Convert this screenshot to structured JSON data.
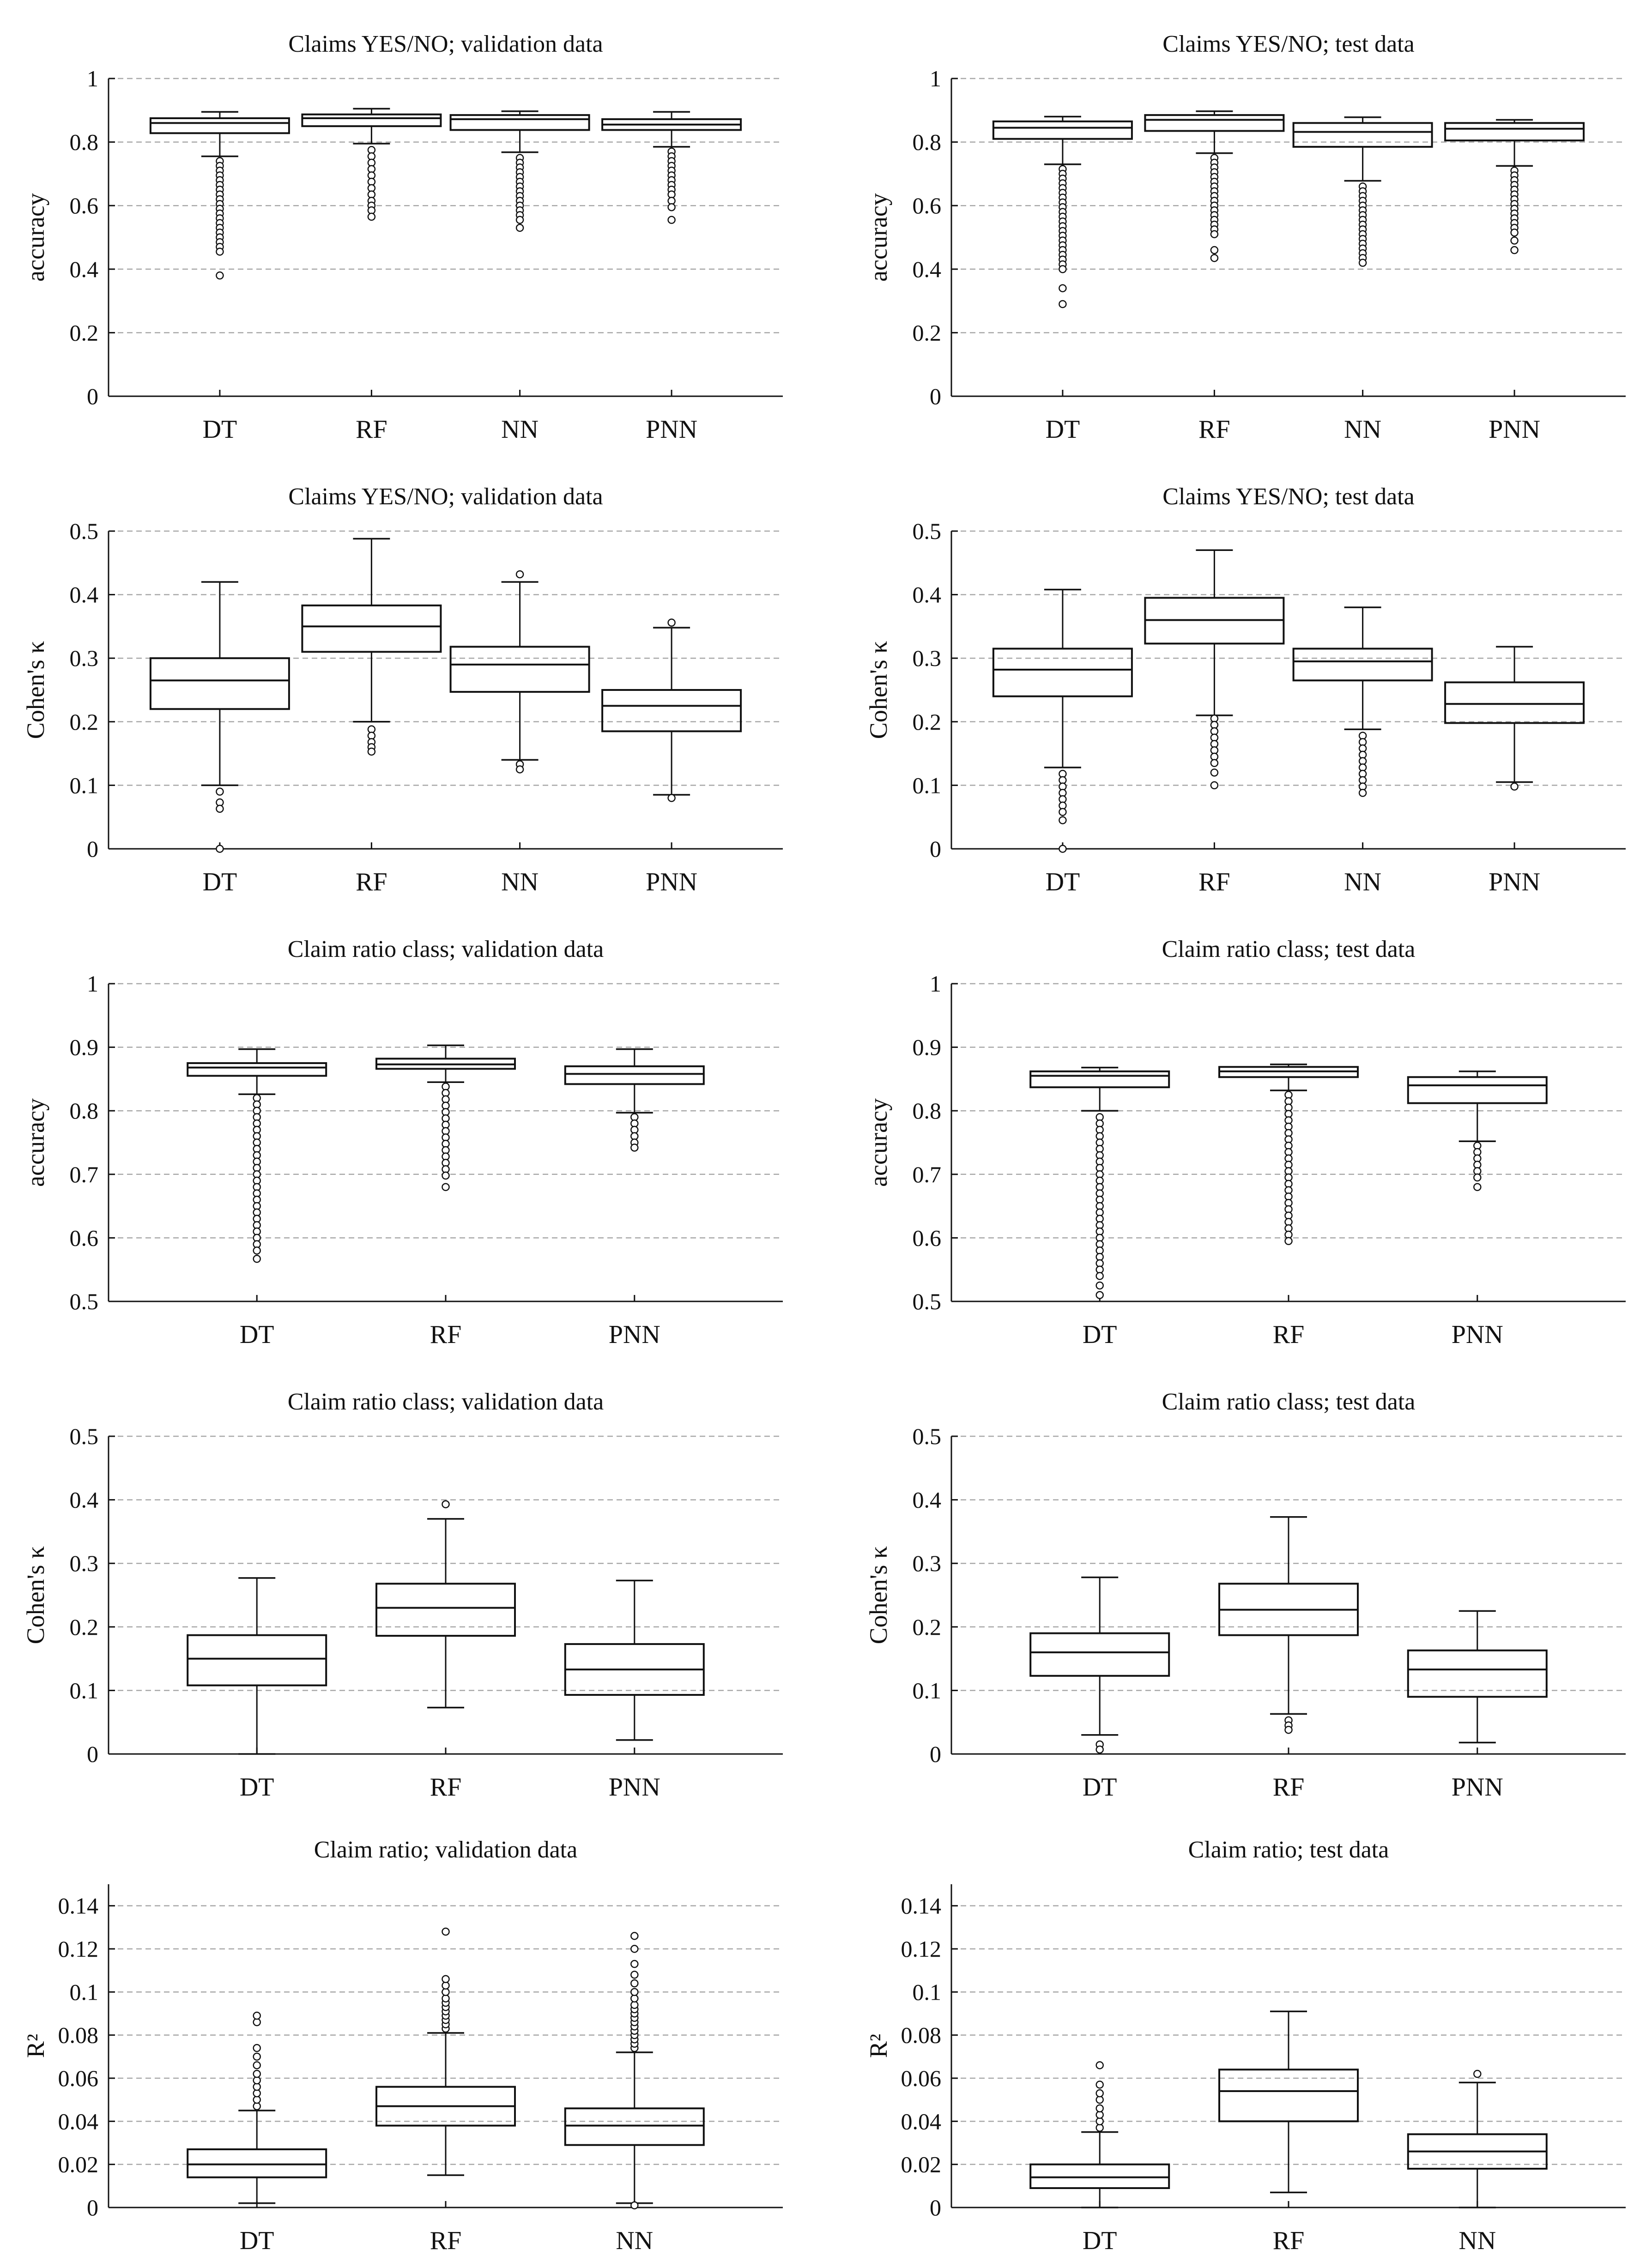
{
  "chart_data": [
    {
      "type": "box",
      "title": "Claims YES/NO; validation data",
      "ylabel": "accuracy",
      "ylim": [
        0,
        1
      ],
      "yticks": [
        0,
        0.2,
        0.4,
        0.6,
        0.8,
        1
      ],
      "ytick_labels": [
        "0",
        "0.2",
        "0.4",
        "0.6",
        "0.8",
        "1"
      ],
      "grid": true,
      "categories": [
        "DT",
        "RF",
        "NN",
        "PNN"
      ],
      "boxes": [
        {
          "label": "DT",
          "min": 0.755,
          "q1": 0.828,
          "median": 0.86,
          "q3": 0.875,
          "max": 0.895,
          "outliers": [
            0.74,
            0.725,
            0.71,
            0.695,
            0.68,
            0.665,
            0.65,
            0.635,
            0.62,
            0.605,
            0.59,
            0.575,
            0.56,
            0.545,
            0.53,
            0.515,
            0.5,
            0.485,
            0.47,
            0.455,
            0.38
          ]
        },
        {
          "label": "RF",
          "min": 0.795,
          "q1": 0.85,
          "median": 0.875,
          "q3": 0.887,
          "max": 0.905,
          "outliers": [
            0.775,
            0.755,
            0.735,
            0.715,
            0.695,
            0.675,
            0.655,
            0.635,
            0.615,
            0.6,
            0.585,
            0.565
          ]
        },
        {
          "label": "NN",
          "min": 0.768,
          "q1": 0.838,
          "median": 0.872,
          "q3": 0.885,
          "max": 0.897,
          "outliers": [
            0.75,
            0.735,
            0.72,
            0.705,
            0.69,
            0.675,
            0.66,
            0.645,
            0.63,
            0.615,
            0.6,
            0.585,
            0.57,
            0.555,
            0.53
          ]
        },
        {
          "label": "PNN",
          "min": 0.785,
          "q1": 0.838,
          "median": 0.855,
          "q3": 0.872,
          "max": 0.895,
          "outliers": [
            0.77,
            0.755,
            0.74,
            0.725,
            0.71,
            0.695,
            0.68,
            0.665,
            0.65,
            0.635,
            0.615,
            0.595,
            0.555
          ]
        }
      ]
    },
    {
      "type": "box",
      "title": "Claims YES/NO; test data",
      "ylabel": "accuracy",
      "ylim": [
        0,
        1
      ],
      "yticks": [
        0,
        0.2,
        0.4,
        0.6,
        0.8,
        1
      ],
      "ytick_labels": [
        "0",
        "0.2",
        "0.4",
        "0.6",
        "0.8",
        "1"
      ],
      "grid": true,
      "categories": [
        "DT",
        "RF",
        "NN",
        "PNN"
      ],
      "boxes": [
        {
          "label": "DT",
          "min": 0.73,
          "q1": 0.81,
          "median": 0.845,
          "q3": 0.865,
          "max": 0.88,
          "outliers": [
            0.715,
            0.7,
            0.685,
            0.67,
            0.655,
            0.64,
            0.625,
            0.61,
            0.595,
            0.58,
            0.565,
            0.55,
            0.535,
            0.52,
            0.505,
            0.49,
            0.475,
            0.46,
            0.445,
            0.43,
            0.415,
            0.4,
            0.34,
            0.29
          ]
        },
        {
          "label": "RF",
          "min": 0.765,
          "q1": 0.835,
          "median": 0.87,
          "q3": 0.885,
          "max": 0.897,
          "outliers": [
            0.75,
            0.735,
            0.72,
            0.705,
            0.69,
            0.675,
            0.66,
            0.645,
            0.63,
            0.615,
            0.6,
            0.585,
            0.57,
            0.555,
            0.54,
            0.525,
            0.51,
            0.46,
            0.435
          ]
        },
        {
          "label": "NN",
          "min": 0.678,
          "q1": 0.785,
          "median": 0.832,
          "q3": 0.86,
          "max": 0.878,
          "outliers": [
            0.66,
            0.645,
            0.63,
            0.615,
            0.6,
            0.585,
            0.57,
            0.555,
            0.54,
            0.525,
            0.51,
            0.495,
            0.48,
            0.465,
            0.45,
            0.435,
            0.42
          ]
        },
        {
          "label": "PNN",
          "min": 0.725,
          "q1": 0.805,
          "median": 0.842,
          "q3": 0.86,
          "max": 0.87,
          "outliers": [
            0.71,
            0.695,
            0.68,
            0.665,
            0.65,
            0.635,
            0.62,
            0.605,
            0.59,
            0.575,
            0.56,
            0.545,
            0.53,
            0.515,
            0.49,
            0.46
          ]
        }
      ]
    },
    {
      "type": "box",
      "title": "Claims YES/NO; validation data",
      "ylabel": "Cohen's κ",
      "ylim": [
        0,
        0.5
      ],
      "yticks": [
        0,
        0.1,
        0.2,
        0.3,
        0.4,
        0.5
      ],
      "ytick_labels": [
        "0",
        "0.1",
        "0.2",
        "0.3",
        "0.4",
        "0.5"
      ],
      "grid": true,
      "categories": [
        "DT",
        "RF",
        "NN",
        "PNN"
      ],
      "boxes": [
        {
          "label": "DT",
          "min": 0.1,
          "q1": 0.22,
          "median": 0.265,
          "q3": 0.3,
          "max": 0.42,
          "outliers": [
            0.09,
            0.073,
            0.063,
            0.0
          ]
        },
        {
          "label": "RF",
          "min": 0.2,
          "q1": 0.31,
          "median": 0.35,
          "q3": 0.383,
          "max": 0.488,
          "outliers": [
            0.188,
            0.178,
            0.168,
            0.16,
            0.153
          ]
        },
        {
          "label": "NN",
          "min": 0.14,
          "q1": 0.247,
          "median": 0.29,
          "q3": 0.318,
          "max": 0.42,
          "outliers": [
            0.432,
            0.133,
            0.125
          ]
        },
        {
          "label": "PNN",
          "min": 0.085,
          "q1": 0.185,
          "median": 0.225,
          "q3": 0.25,
          "max": 0.348,
          "outliers": [
            0.356,
            0.08
          ]
        }
      ]
    },
    {
      "type": "box",
      "title": "Claims YES/NO; test data",
      "ylabel": "Cohen's κ",
      "ylim": [
        0,
        0.5
      ],
      "yticks": [
        0,
        0.1,
        0.2,
        0.3,
        0.4,
        0.5
      ],
      "ytick_labels": [
        "0",
        "0.1",
        "0.2",
        "0.3",
        "0.4",
        "0.5"
      ],
      "grid": true,
      "categories": [
        "DT",
        "RF",
        "NN",
        "PNN"
      ],
      "boxes": [
        {
          "label": "DT",
          "min": 0.128,
          "q1": 0.24,
          "median": 0.282,
          "q3": 0.315,
          "max": 0.408,
          "outliers": [
            0.118,
            0.108,
            0.098,
            0.088,
            0.078,
            0.068,
            0.058,
            0.045,
            0.0
          ]
        },
        {
          "label": "RF",
          "min": 0.21,
          "q1": 0.323,
          "median": 0.36,
          "q3": 0.395,
          "max": 0.47,
          "outliers": [
            0.205,
            0.195,
            0.185,
            0.175,
            0.165,
            0.155,
            0.145,
            0.135,
            0.12,
            0.1
          ]
        },
        {
          "label": "NN",
          "min": 0.188,
          "q1": 0.265,
          "median": 0.295,
          "q3": 0.315,
          "max": 0.38,
          "outliers": [
            0.178,
            0.168,
            0.158,
            0.148,
            0.138,
            0.128,
            0.118,
            0.108,
            0.098,
            0.088
          ]
        },
        {
          "label": "PNN",
          "min": 0.105,
          "q1": 0.198,
          "median": 0.228,
          "q3": 0.262,
          "max": 0.318,
          "outliers": [
            0.098
          ]
        }
      ]
    },
    {
      "type": "box",
      "title": "Claim ratio class; validation data",
      "ylabel": "accuracy",
      "ylim": [
        0.5,
        1
      ],
      "yticks": [
        0.5,
        0.6,
        0.7,
        0.8,
        0.9,
        1
      ],
      "ytick_labels": [
        "0.5",
        "0.6",
        "0.7",
        "0.8",
        "0.9",
        "1"
      ],
      "grid": true,
      "categories": [
        "DT",
        "RF",
        "PNN"
      ],
      "boxes": [
        {
          "label": "DT",
          "min": 0.826,
          "q1": 0.855,
          "median": 0.868,
          "q3": 0.875,
          "max": 0.897,
          "outliers": [
            0.82,
            0.81,
            0.8,
            0.79,
            0.78,
            0.77,
            0.76,
            0.75,
            0.74,
            0.73,
            0.72,
            0.71,
            0.7,
            0.69,
            0.68,
            0.67,
            0.66,
            0.65,
            0.64,
            0.63,
            0.62,
            0.61,
            0.6,
            0.59,
            0.58,
            0.567
          ]
        },
        {
          "label": "RF",
          "min": 0.845,
          "q1": 0.866,
          "median": 0.873,
          "q3": 0.882,
          "max": 0.903,
          "outliers": [
            0.838,
            0.828,
            0.818,
            0.808,
            0.798,
            0.788,
            0.778,
            0.768,
            0.758,
            0.748,
            0.738,
            0.728,
            0.718,
            0.708,
            0.698,
            0.68
          ]
        },
        {
          "label": "PNN",
          "min": 0.797,
          "q1": 0.842,
          "median": 0.858,
          "q3": 0.87,
          "max": 0.897,
          "outliers": [
            0.79,
            0.78,
            0.77,
            0.76,
            0.75,
            0.742
          ]
        }
      ]
    },
    {
      "type": "box",
      "title": "Claim ratio class; test data",
      "ylabel": "accuracy",
      "ylim": [
        0.5,
        1
      ],
      "yticks": [
        0.5,
        0.6,
        0.7,
        0.8,
        0.9,
        1
      ],
      "ytick_labels": [
        "0.5",
        "0.6",
        "0.7",
        "0.8",
        "0.9",
        "1"
      ],
      "grid": true,
      "categories": [
        "DT",
        "RF",
        "PNN"
      ],
      "boxes": [
        {
          "label": "DT",
          "min": 0.8,
          "q1": 0.837,
          "median": 0.855,
          "q3": 0.862,
          "max": 0.868,
          "outliers": [
            0.79,
            0.78,
            0.77,
            0.76,
            0.75,
            0.74,
            0.73,
            0.72,
            0.71,
            0.7,
            0.69,
            0.68,
            0.67,
            0.66,
            0.65,
            0.64,
            0.63,
            0.62,
            0.61,
            0.6,
            0.59,
            0.58,
            0.57,
            0.56,
            0.55,
            0.54,
            0.525,
            0.51
          ]
        },
        {
          "label": "RF",
          "min": 0.832,
          "q1": 0.853,
          "median": 0.862,
          "q3": 0.869,
          "max": 0.873,
          "outliers": [
            0.825,
            0.815,
            0.805,
            0.795,
            0.785,
            0.775,
            0.765,
            0.755,
            0.745,
            0.735,
            0.725,
            0.715,
            0.705,
            0.695,
            0.685,
            0.675,
            0.665,
            0.655,
            0.645,
            0.635,
            0.625,
            0.615,
            0.605,
            0.595
          ]
        },
        {
          "label": "PNN",
          "min": 0.752,
          "q1": 0.812,
          "median": 0.84,
          "q3": 0.853,
          "max": 0.862,
          "outliers": [
            0.745,
            0.735,
            0.725,
            0.715,
            0.705,
            0.695,
            0.68
          ]
        }
      ]
    },
    {
      "type": "box",
      "title": "Claim ratio class; validation data",
      "ylabel": "Cohen's κ",
      "ylim": [
        0,
        0.5
      ],
      "yticks": [
        0,
        0.1,
        0.2,
        0.3,
        0.4,
        0.5
      ],
      "ytick_labels": [
        "0",
        "0.1",
        "0.2",
        "0.3",
        "0.4",
        "0.5"
      ],
      "grid": true,
      "categories": [
        "DT",
        "RF",
        "PNN"
      ],
      "boxes": [
        {
          "label": "DT",
          "min": 0.0,
          "q1": 0.108,
          "median": 0.15,
          "q3": 0.187,
          "max": 0.277,
          "outliers": []
        },
        {
          "label": "RF",
          "min": 0.073,
          "q1": 0.186,
          "median": 0.23,
          "q3": 0.268,
          "max": 0.37,
          "outliers": [
            0.393
          ]
        },
        {
          "label": "PNN",
          "min": 0.022,
          "q1": 0.093,
          "median": 0.133,
          "q3": 0.173,
          "max": 0.273,
          "outliers": []
        }
      ]
    },
    {
      "type": "box",
      "title": "Claim ratio class; test data",
      "ylabel": "Cohen's κ",
      "ylim": [
        0,
        0.5
      ],
      "yticks": [
        0,
        0.1,
        0.2,
        0.3,
        0.4,
        0.5
      ],
      "ytick_labels": [
        "0",
        "0.1",
        "0.2",
        "0.3",
        "0.4",
        "0.5"
      ],
      "grid": true,
      "categories": [
        "DT",
        "RF",
        "PNN"
      ],
      "boxes": [
        {
          "label": "DT",
          "min": 0.03,
          "q1": 0.123,
          "median": 0.16,
          "q3": 0.19,
          "max": 0.278,
          "outliers": [
            0.015,
            0.007
          ]
        },
        {
          "label": "RF",
          "min": 0.063,
          "q1": 0.187,
          "median": 0.227,
          "q3": 0.268,
          "max": 0.373,
          "outliers": [
            0.053,
            0.045,
            0.038
          ]
        },
        {
          "label": "PNN",
          "min": 0.018,
          "q1": 0.09,
          "median": 0.133,
          "q3": 0.163,
          "max": 0.225,
          "outliers": []
        }
      ]
    },
    {
      "type": "box",
      "title": "Claim ratio; validation data",
      "ylabel": "R²",
      "ylim": [
        0,
        0.15
      ],
      "yticks": [
        0,
        0.02,
        0.04,
        0.06,
        0.08,
        0.1,
        0.12,
        0.14
      ],
      "ytick_labels": [
        "0",
        "0.02",
        "0.04",
        "0.06",
        "0.08",
        "0.1",
        "0.12",
        "0.14"
      ],
      "grid": true,
      "categories": [
        "DT",
        "RF",
        "NN"
      ],
      "boxes": [
        {
          "label": "DT",
          "min": 0.002,
          "q1": 0.014,
          "median": 0.02,
          "q3": 0.027,
          "max": 0.045,
          "outliers": [
            0.047,
            0.05,
            0.053,
            0.056,
            0.059,
            0.062,
            0.066,
            0.07,
            0.074,
            0.086,
            0.089
          ]
        },
        {
          "label": "RF",
          "min": 0.015,
          "q1": 0.038,
          "median": 0.047,
          "q3": 0.056,
          "max": 0.081,
          "outliers": [
            0.083,
            0.085,
            0.087,
            0.089,
            0.091,
            0.093,
            0.095,
            0.097,
            0.1,
            0.103,
            0.106,
            0.128
          ]
        },
        {
          "label": "NN",
          "min": 0.002,
          "q1": 0.029,
          "median": 0.038,
          "q3": 0.046,
          "max": 0.072,
          "outliers": [
            0.074,
            0.076,
            0.078,
            0.08,
            0.082,
            0.084,
            0.086,
            0.088,
            0.09,
            0.092,
            0.094,
            0.097,
            0.1,
            0.104,
            0.108,
            0.113,
            0.12,
            0.126,
            0.001
          ]
        }
      ]
    },
    {
      "type": "box",
      "title": "Claim ratio; test data",
      "ylabel": "R²",
      "ylim": [
        0,
        0.15
      ],
      "yticks": [
        0,
        0.02,
        0.04,
        0.06,
        0.08,
        0.1,
        0.12,
        0.14
      ],
      "ytick_labels": [
        "0",
        "0.02",
        "0.04",
        "0.06",
        "0.08",
        "0.1",
        "0.12",
        "0.14"
      ],
      "grid": true,
      "categories": [
        "DT",
        "RF",
        "NN"
      ],
      "boxes": [
        {
          "label": "DT",
          "min": 0.0,
          "q1": 0.009,
          "median": 0.014,
          "q3": 0.02,
          "max": 0.035,
          "outliers": [
            0.037,
            0.04,
            0.043,
            0.046,
            0.05,
            0.053,
            0.057,
            0.066
          ]
        },
        {
          "label": "RF",
          "min": 0.007,
          "q1": 0.04,
          "median": 0.054,
          "q3": 0.064,
          "max": 0.091,
          "outliers": []
        },
        {
          "label": "NN",
          "min": 0.0,
          "q1": 0.018,
          "median": 0.026,
          "q3": 0.034,
          "max": 0.058,
          "outliers": [
            0.062
          ]
        }
      ]
    }
  ]
}
